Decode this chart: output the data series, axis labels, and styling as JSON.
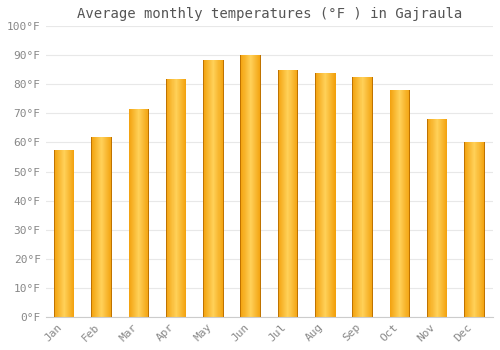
{
  "title": "Average monthly temperatures (°F ) in Gajraula",
  "months": [
    "Jan",
    "Feb",
    "Mar",
    "Apr",
    "May",
    "Jun",
    "Jul",
    "Aug",
    "Sep",
    "Oct",
    "Nov",
    "Dec"
  ],
  "values": [
    57.5,
    62,
    71.5,
    82,
    88.5,
    90,
    85,
    84,
    82.5,
    78,
    68,
    60
  ],
  "bar_color_center": "#FFD060",
  "bar_color_edge": "#F0A000",
  "bar_edge_color": "#C88000",
  "ylim": [
    0,
    100
  ],
  "yticks": [
    0,
    10,
    20,
    30,
    40,
    50,
    60,
    70,
    80,
    90,
    100
  ],
  "ytick_labels": [
    "0°F",
    "10°F",
    "20°F",
    "30°F",
    "40°F",
    "50°F",
    "60°F",
    "70°F",
    "80°F",
    "90°F",
    "100°F"
  ],
  "bg_color": "#FFFFFF",
  "grid_color": "#E8E8E8",
  "title_fontsize": 10,
  "tick_fontsize": 8,
  "font_family": "monospace",
  "bar_width": 0.55
}
